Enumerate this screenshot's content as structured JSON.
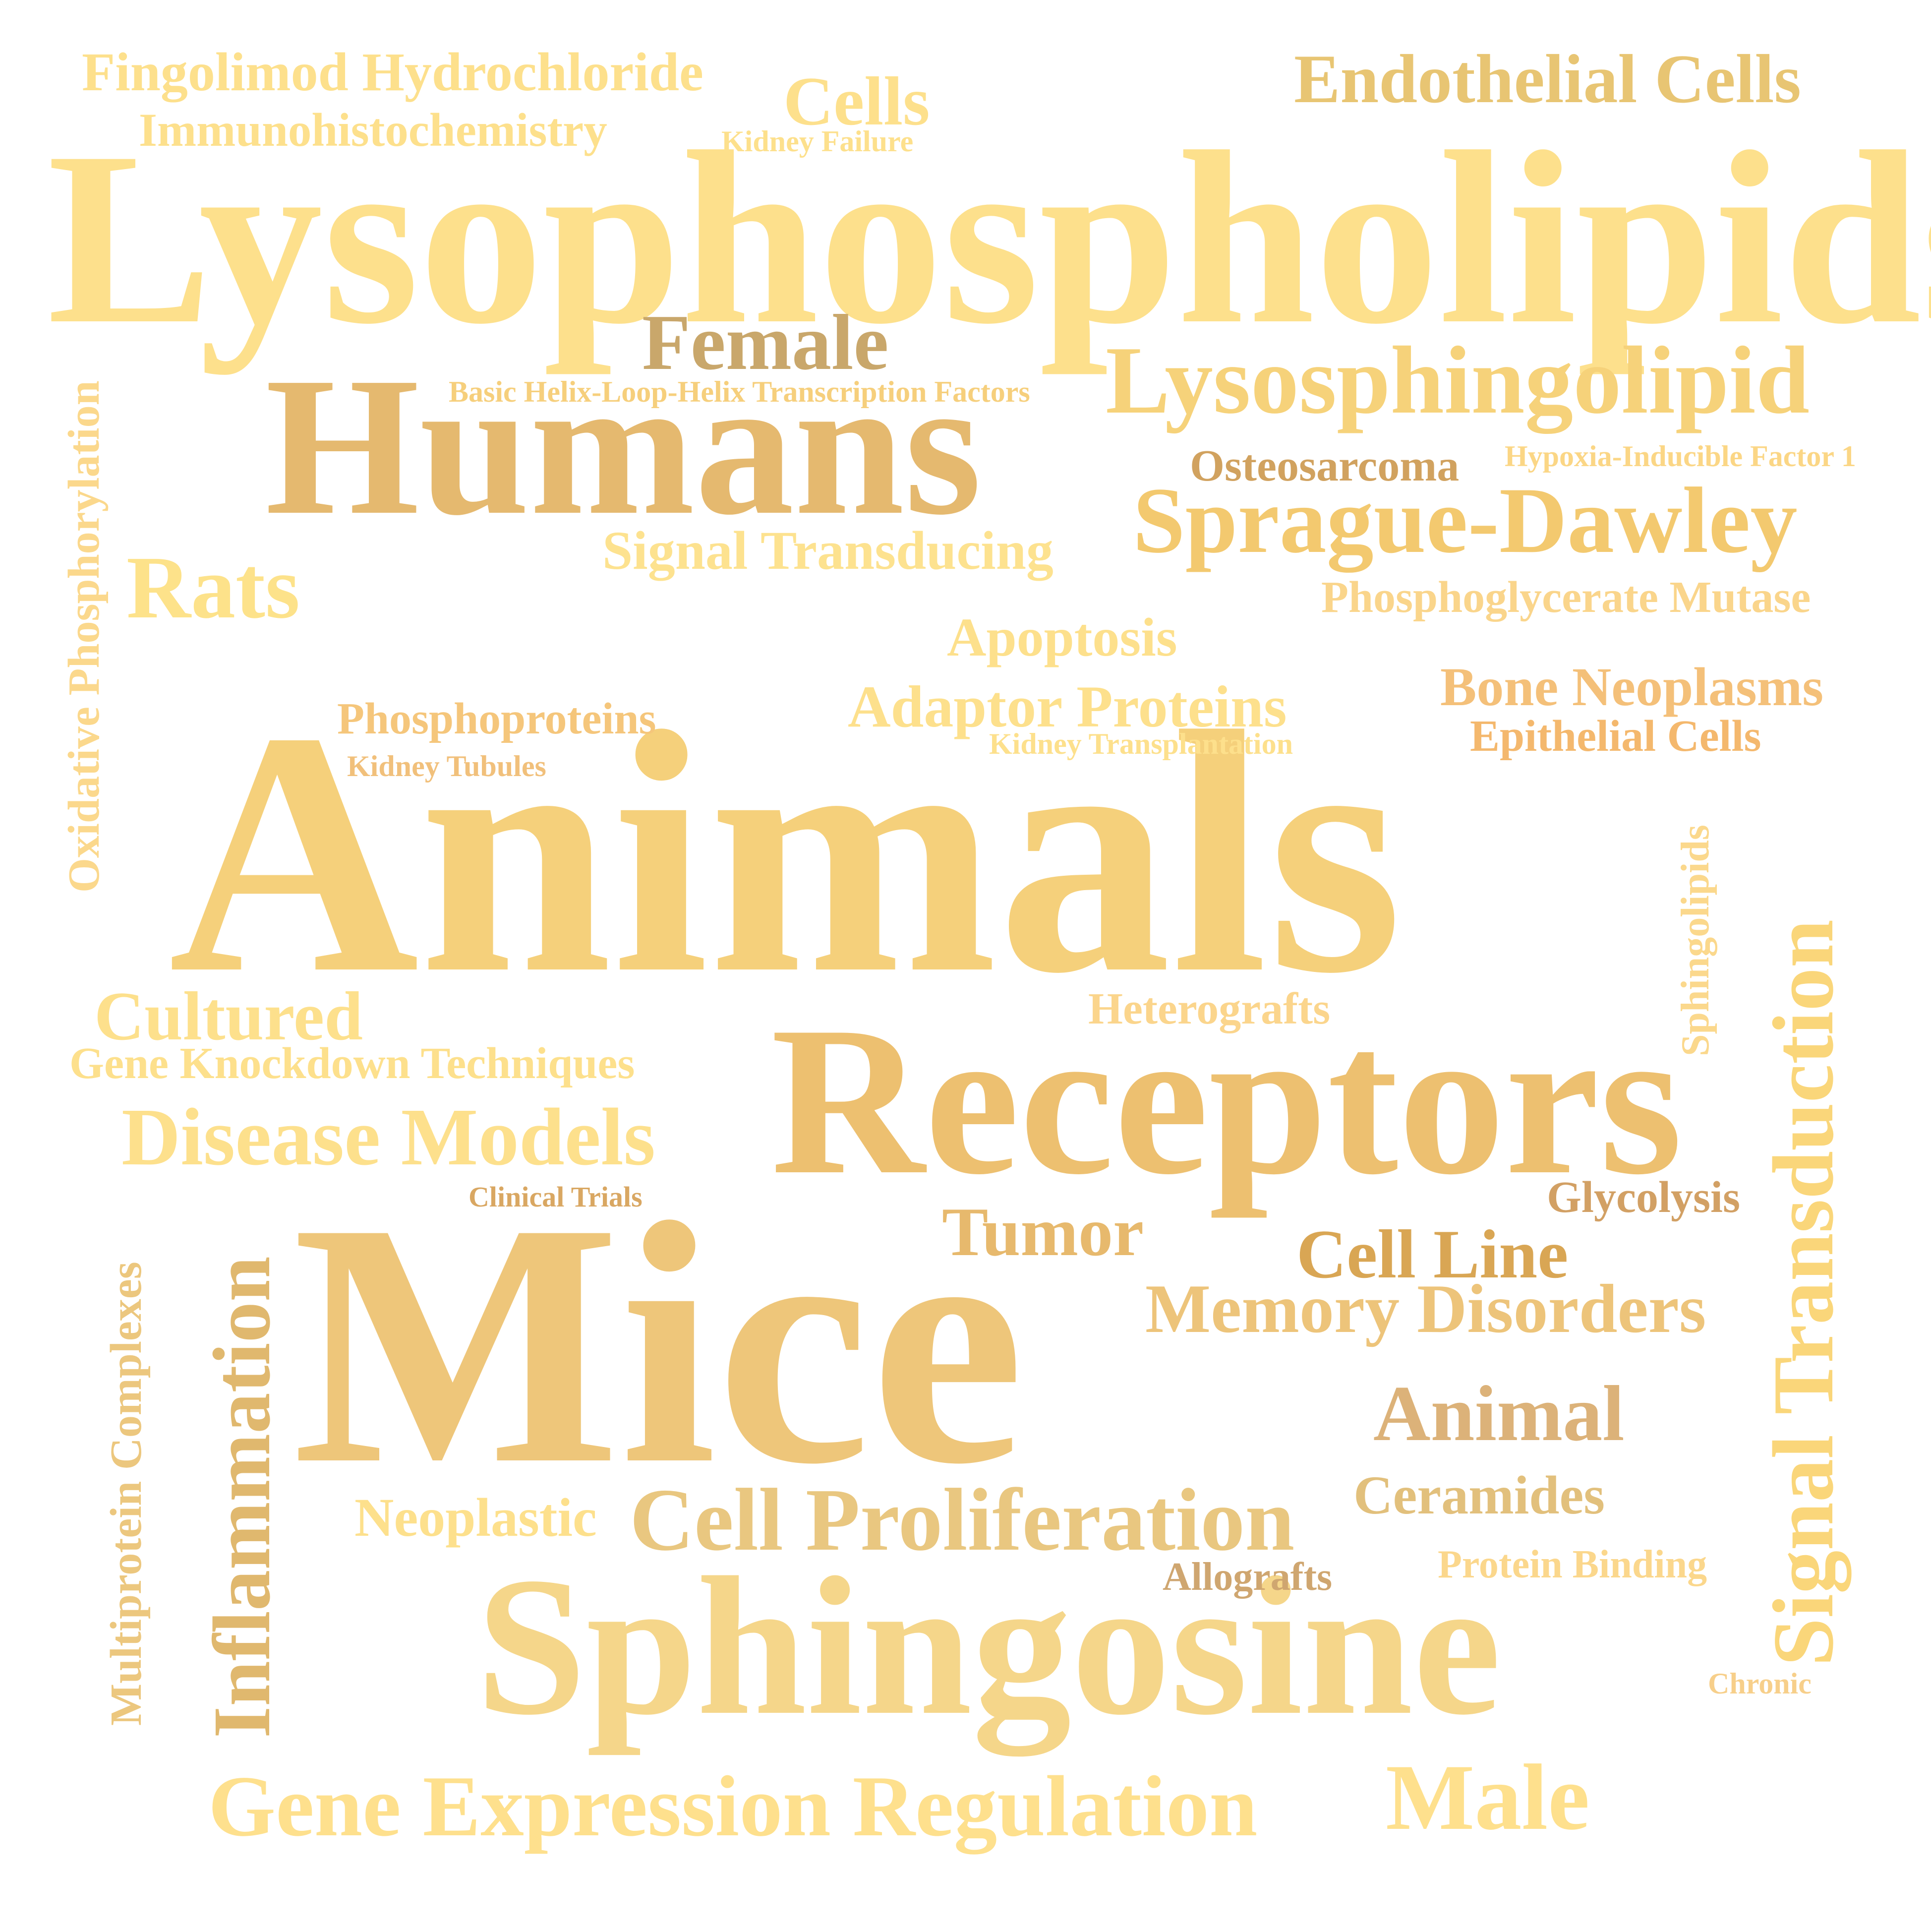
{
  "words": [
    {
      "id": "lysophospholipids",
      "text": "Lysophospholipids",
      "color": "#fde08c"
    },
    {
      "id": "humans",
      "text": "Humans",
      "color": "#e5b96f"
    },
    {
      "id": "animals",
      "text": "Animals",
      "color": "#f5d07b"
    },
    {
      "id": "receptors",
      "text": "Receptors",
      "color": "#edc070"
    },
    {
      "id": "mice",
      "text": "Mice",
      "color": "#eec67a"
    },
    {
      "id": "sphingosine",
      "text": "Sphingosine",
      "color": "#f5d68a"
    },
    {
      "id": "lysosphingolipid",
      "text": "Lysosphingolipid",
      "color": "#f6d27a"
    },
    {
      "id": "sprague-dawley",
      "text": "Sprague-Dawley",
      "color": "#f3c96f"
    },
    {
      "id": "endothelial-cells",
      "text": "Endothelial Cells",
      "color": "#e8c573"
    },
    {
      "id": "female",
      "text": "Female",
      "color": "#c9a76b"
    },
    {
      "id": "rats",
      "text": "Rats",
      "color": "#fde28a"
    },
    {
      "id": "signal-transduction",
      "text": "Signal Transduction",
      "color": "#fad67a"
    },
    {
      "id": "gene-expression-regulation",
      "text": "Gene Expression Regulation",
      "color": "#fee08d"
    },
    {
      "id": "male",
      "text": "Male",
      "color": "#fee08d"
    },
    {
      "id": "cell-proliferation",
      "text": "Cell Proliferation",
      "color": "#e9c780"
    },
    {
      "id": "disease-models",
      "text": "Disease Models",
      "color": "#fde08c"
    },
    {
      "id": "cultured",
      "text": "Cultured",
      "color": "#fde08c"
    },
    {
      "id": "inflammation",
      "text": "Inflammation",
      "color": "#e0b86e"
    },
    {
      "id": "memory-disorders",
      "text": "Memory Disorders",
      "color": "#edc47a"
    },
    {
      "id": "animal",
      "text": "Animal",
      "color": "#dcb279"
    },
    {
      "id": "tumor",
      "text": "Tumor",
      "color": "#e7b96d"
    },
    {
      "id": "cell-line",
      "text": "Cell Line",
      "color": "#d9a654"
    },
    {
      "id": "fingolimod-hydrochloride",
      "text": "Fingolimod Hydrochloride",
      "color": "#fde08c"
    },
    {
      "id": "cells",
      "text": "Cells",
      "color": "#fde08c"
    },
    {
      "id": "immunohistochemistry",
      "text": "Immunohistochemistry",
      "color": "#fde08c"
    },
    {
      "id": "kidney-failure",
      "text": "Kidney Failure",
      "color": "#fde08c"
    },
    {
      "id": "basic-helix-loop-helix",
      "text": "Basic Helix-Loop-Helix Transcription Factors",
      "color": "#f6cf7c"
    },
    {
      "id": "osteosarcoma",
      "text": "Osteosarcoma",
      "color": "#d1a25f"
    },
    {
      "id": "hypoxia-inducible-factor-1",
      "text": "Hypoxia-Inducible Factor 1",
      "color": "#fbd685"
    },
    {
      "id": "signal-transducing",
      "text": "Signal Transducing",
      "color": "#fde28f"
    },
    {
      "id": "phosphoglycerate-mutase",
      "text": "Phosphoglycerate Mutase",
      "color": "#fad58b"
    },
    {
      "id": "apoptosis",
      "text": "Apoptosis",
      "color": "#fde08c"
    },
    {
      "id": "bone-neoplasms",
      "text": "Bone Neoplasms",
      "color": "#f4c079"
    },
    {
      "id": "epithelial-cells",
      "text": "Epithelial Cells",
      "color": "#f4b86d"
    },
    {
      "id": "adaptor-proteins",
      "text": "Adaptor Proteins",
      "color": "#fde08c"
    },
    {
      "id": "kidney-transplantation",
      "text": "Kidney Transplantation",
      "color": "#fde08c"
    },
    {
      "id": "phosphoproteins",
      "text": "Phosphoproteins",
      "color": "#f5c67b"
    },
    {
      "id": "kidney-tubules",
      "text": "Kidney Tubules",
      "color": "#f1c07b"
    },
    {
      "id": "oxidative-phosphorylation",
      "text": "Oxidative Phosphorylation",
      "color": "#fbd88c"
    },
    {
      "id": "sphingolipids",
      "text": "Sphingolipids",
      "color": "#fbd88c"
    },
    {
      "id": "heterografts",
      "text": "Heterografts",
      "color": "#fbd58c"
    },
    {
      "id": "gene-knockdown-techniques",
      "text": "Gene Knockdown Techniques",
      "color": "#fde08c"
    },
    {
      "id": "clinical-trials",
      "text": "Clinical Trials",
      "color": "#d9a762"
    },
    {
      "id": "glycolysis",
      "text": "Glycolysis",
      "color": "#d2a064"
    },
    {
      "id": "multiprotein-complexes",
      "text": "Multiprotein Complexes",
      "color": "#ecc77e"
    },
    {
      "id": "neoplastic",
      "text": "Neoplastic",
      "color": "#fde08c"
    },
    {
      "id": "ceramides",
      "text": "Ceramides",
      "color": "#e2c07c"
    },
    {
      "id": "allografts",
      "text": "Allografts",
      "color": "#cfa670"
    },
    {
      "id": "protein-binding",
      "text": "Protein Binding",
      "color": "#fbd78c"
    },
    {
      "id": "chronic",
      "text": "Chronic",
      "color": "#f7cf8a"
    }
  ]
}
